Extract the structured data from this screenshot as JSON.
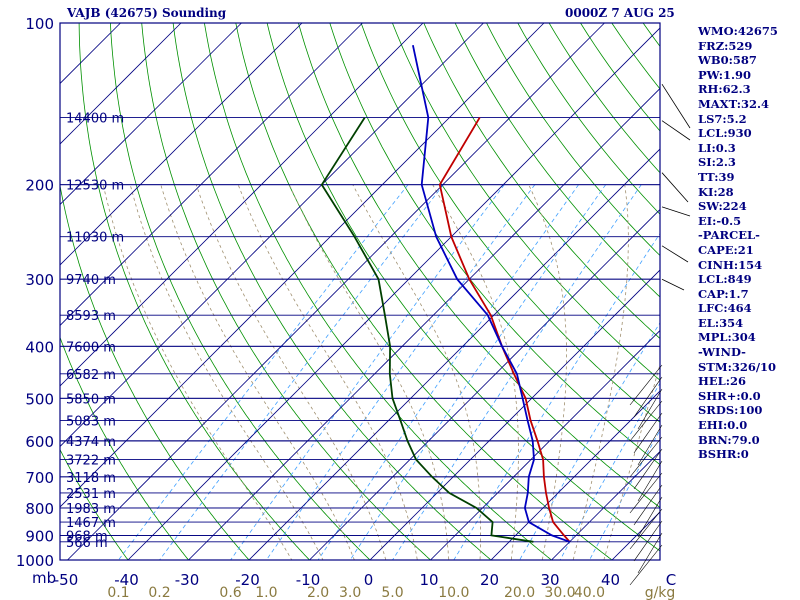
{
  "title_left": "VAJB (42675) Sounding",
  "title_right": "0000Z  7 AUG 25",
  "stats": [
    "WMO:42675",
    "FRZ:529",
    "WB0:587",
    "PW:1.90",
    "RH:62.3",
    "MAXT:32.4",
    "LS7:5.2",
    "LCL:930",
    "LI:0.3",
    "SI:2.3",
    "TT:39",
    "KI:28",
    "SW:224",
    "EI:-0.5",
    "-PARCEL-",
    "CAPE:21",
    "CINH:154",
    "LCL:849",
    "CAP:1.7",
    "LFC:464",
    "EL:354",
    "MPL:304",
    "-WIND-",
    "STM:326/10",
    "HEL:26",
    "SHR+:0.0",
    "SRDS:100",
    "EHI:0.0",
    "BRN:79.0",
    "BSHR:0"
  ],
  "colors": {
    "frame": "#000080",
    "isobar": "#000080",
    "isotherm": "#000080",
    "dry_adiabat": "#009000",
    "mixing_ratio": "#40a0ff",
    "moist_adiabat": "#a09070",
    "temperature": "#c00000",
    "dewpoint": "#004000",
    "parcel": "#0000c0",
    "text": "#000080",
    "bottom_text": "#8a7a40"
  },
  "chart_data": {
    "type": "line",
    "diagram": "skew-T log-P",
    "pressure_labels": [
      "100",
      "200",
      "300",
      "400",
      "500",
      "600",
      "700",
      "800",
      "900",
      "1000"
    ],
    "pressure_unit": "mb",
    "temperature_labels": [
      "-50",
      "-40",
      "-30",
      "-20",
      "-10",
      "0",
      "10",
      "20",
      "30",
      "40",
      "C"
    ],
    "mixing_ratio_labels": [
      "0.1",
      "0.2",
      "0.6",
      "1.0",
      "2.0",
      "3.0",
      "5.0",
      "10.0",
      "20.0",
      "30.0",
      "40.0"
    ],
    "mixing_ratio_unit": "g/kg",
    "height_levels": [
      {
        "p": 150,
        "label": "14400 m"
      },
      {
        "p": 200,
        "label": "12530 m"
      },
      {
        "p": 250,
        "label": "11030 m"
      },
      {
        "p": 300,
        "label": "9740 m"
      },
      {
        "p": 350,
        "label": "8593 m"
      },
      {
        "p": 400,
        "label": "7600 m"
      },
      {
        "p": 450,
        "label": "6582 m"
      },
      {
        "p": 500,
        "label": "5850 m"
      },
      {
        "p": 550,
        "label": "5083 m"
      },
      {
        "p": 600,
        "label": "4374 m"
      },
      {
        "p": 650,
        "label": "3722 m"
      },
      {
        "p": 700,
        "label": "3118 m"
      },
      {
        "p": 750,
        "label": "2531 m"
      },
      {
        "p": 800,
        "label": "1983 m"
      },
      {
        "p": 850,
        "label": "1467 m"
      },
      {
        "p": 900,
        "label": "968 m"
      },
      {
        "p": 925,
        "label": "566 m"
      }
    ],
    "series": [
      {
        "key": "temperature",
        "points": [
          [
            150,
            -55
          ],
          [
            200,
            -50.5
          ],
          [
            250,
            -40
          ],
          [
            300,
            -30
          ],
          [
            350,
            -20.5
          ],
          [
            400,
            -13.5
          ],
          [
            450,
            -7
          ],
          [
            500,
            -1
          ],
          [
            550,
            3.5
          ],
          [
            600,
            8
          ],
          [
            650,
            12
          ],
          [
            700,
            15
          ],
          [
            750,
            18
          ],
          [
            800,
            21
          ],
          [
            850,
            24
          ],
          [
            900,
            28
          ],
          [
            925,
            30
          ]
        ]
      },
      {
        "key": "parcel",
        "points": [
          [
            110,
            -78
          ],
          [
            150,
            -63.5
          ],
          [
            200,
            -53.5
          ],
          [
            250,
            -42.5
          ],
          [
            300,
            -32
          ],
          [
            350,
            -21
          ],
          [
            400,
            -13.5
          ],
          [
            450,
            -6.5
          ],
          [
            500,
            -1.5
          ],
          [
            550,
            3
          ],
          [
            600,
            7.2
          ],
          [
            650,
            10.5
          ],
          [
            700,
            12.5
          ],
          [
            750,
            15
          ],
          [
            800,
            17
          ],
          [
            850,
            20
          ],
          [
            900,
            26
          ],
          [
            925,
            30
          ]
        ]
      },
      {
        "key": "dewpoint",
        "points": [
          [
            150,
            -74
          ],
          [
            200,
            -70
          ],
          [
            250,
            -56
          ],
          [
            300,
            -45
          ],
          [
            350,
            -38
          ],
          [
            400,
            -32
          ],
          [
            450,
            -27.5
          ],
          [
            500,
            -23
          ],
          [
            550,
            -18
          ],
          [
            600,
            -13.5
          ],
          [
            650,
            -9
          ],
          [
            700,
            -3.5
          ],
          [
            750,
            2
          ],
          [
            800,
            9
          ],
          [
            850,
            14
          ],
          [
            900,
            16
          ],
          [
            925,
            24
          ]
        ]
      }
    ]
  }
}
